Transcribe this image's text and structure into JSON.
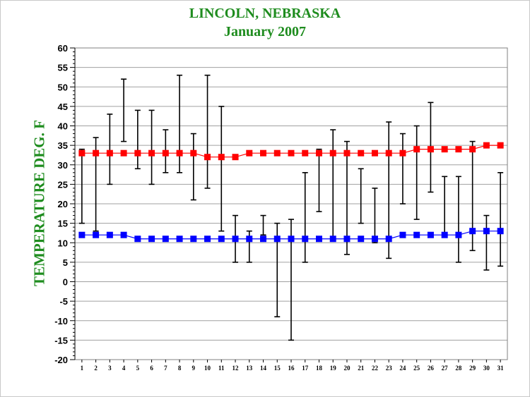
{
  "chart_data": {
    "type": "line",
    "title": "LINCOLN, NEBRASKA",
    "subtitle": "January 2007",
    "ylabel": "TEMPERATURE DEG. F",
    "ylim": [
      -20,
      60
    ],
    "y_ticks": [
      -20,
      -15,
      -10,
      -5,
      0,
      5,
      10,
      15,
      20,
      25,
      30,
      35,
      40,
      45,
      50,
      55,
      60
    ],
    "x": [
      1,
      2,
      3,
      4,
      5,
      6,
      7,
      8,
      9,
      10,
      11,
      12,
      13,
      14,
      15,
      16,
      17,
      18,
      19,
      20,
      21,
      22,
      23,
      24,
      25,
      26,
      27,
      28,
      29,
      30,
      31
    ],
    "grid": true,
    "series": [
      {
        "color": "#ff0000",
        "values": [
          33,
          33,
          33,
          33,
          33,
          33,
          33,
          33,
          33,
          32,
          32,
          32,
          33,
          33,
          33,
          33,
          33,
          33,
          33,
          33,
          33,
          33,
          33,
          33,
          34,
          34,
          34,
          34,
          34,
          35,
          35
        ]
      },
      {
        "color": "#0000ff",
        "values": [
          12,
          12,
          12,
          12,
          11,
          11,
          11,
          11,
          11,
          11,
          11,
          11,
          11,
          11,
          11,
          11,
          11,
          11,
          11,
          11,
          11,
          11,
          11,
          12,
          12,
          12,
          12,
          12,
          13,
          13,
          13
        ]
      }
    ],
    "ranges": {
      "color": "#000000",
      "high": [
        34,
        37,
        43,
        52,
        44,
        44,
        39,
        53,
        38,
        53,
        45,
        17,
        13,
        17,
        15,
        16,
        28,
        34,
        39,
        36,
        29,
        24,
        41,
        38,
        40,
        46,
        27,
        27,
        36,
        17,
        28
      ],
      "low": [
        15,
        13,
        25,
        36,
        29,
        25,
        28,
        28,
        21,
        24,
        13,
        5,
        5,
        12,
        -9,
        -15,
        5,
        18,
        11,
        7,
        15,
        10,
        6,
        20,
        16,
        23,
        12,
        5,
        8,
        3,
        4
      ]
    }
  }
}
